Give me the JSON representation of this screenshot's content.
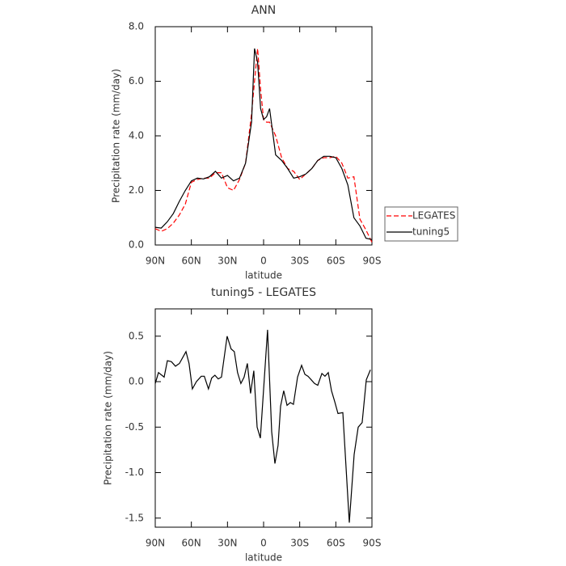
{
  "chart_data": [
    {
      "type": "line",
      "title": "ANN",
      "xlabel": "latitude",
      "ylabel": "Precipitation rate (mm/day)",
      "x": [
        90,
        85,
        80,
        75,
        70,
        65,
        60,
        55,
        50,
        45,
        40,
        35,
        30,
        25,
        20,
        15,
        10,
        7.5,
        5,
        2.5,
        0,
        -2.5,
        -5,
        -10,
        -15,
        -20,
        -25,
        -30,
        -35,
        -40,
        -45,
        -50,
        -55,
        -60,
        -65,
        -70,
        -75,
        -80,
        -85,
        -90
      ],
      "series": [
        {
          "name": "LEGATES",
          "color": "#ff0000",
          "style": "dashed",
          "values": [
            0.6,
            0.5,
            0.6,
            0.8,
            1.1,
            1.5,
            2.3,
            2.4,
            2.45,
            2.45,
            2.65,
            2.65,
            2.1,
            2.0,
            2.4,
            3.0,
            4.8,
            6.0,
            7.2,
            5.7,
            4.6,
            4.5,
            4.5,
            4.0,
            3.2,
            2.8,
            2.7,
            2.4,
            2.6,
            2.8,
            3.1,
            3.2,
            3.2,
            3.25,
            3.0,
            2.45,
            2.5,
            0.95,
            0.55,
            0.1
          ]
        },
        {
          "name": "tuning5",
          "color": "#000000",
          "style": "solid",
          "values": [
            0.65,
            0.62,
            0.85,
            1.15,
            1.6,
            2.0,
            2.35,
            2.45,
            2.42,
            2.5,
            2.7,
            2.45,
            2.55,
            2.35,
            2.45,
            3.0,
            4.5,
            7.2,
            6.7,
            5.0,
            4.6,
            4.7,
            5.0,
            3.3,
            3.1,
            2.8,
            2.45,
            2.5,
            2.6,
            2.8,
            3.1,
            3.25,
            3.25,
            3.2,
            2.8,
            2.2,
            1.0,
            0.7,
            0.25,
            0.2
          ]
        }
      ],
      "xlim": [
        90,
        -90
      ],
      "xticks": [
        {
          "value": 90,
          "label": "90N"
        },
        {
          "value": 60,
          "label": "60N"
        },
        {
          "value": 30,
          "label": "30N"
        },
        0,
        {
          "value": -30,
          "label": "30S"
        },
        {
          "value": -60,
          "label": "60S"
        },
        {
          "value": -90,
          "label": "90S"
        }
      ],
      "ylim": [
        0,
        8
      ],
      "yticks": [
        {
          "value": 0,
          "label": "0.0"
        },
        {
          "value": 2,
          "label": "2.0"
        },
        {
          "value": 4,
          "label": "4.0"
        },
        {
          "value": 6,
          "label": "6.0"
        },
        {
          "value": 8,
          "label": "8.0"
        }
      ],
      "legend": "right"
    },
    {
      "type": "line",
      "title": "tuning5 - LEGATES",
      "xlabel": "latitude",
      "ylabel": "Precipitation rate (mm/day)",
      "x": [
        90,
        87.3,
        82.6,
        79.9,
        76.6,
        73.2,
        69.9,
        64.5,
        61.9,
        59.2,
        55.8,
        51.8,
        49.2,
        45.8,
        43.1,
        40.4,
        37.7,
        35.0,
        30.3,
        27.0,
        24.3,
        21.6,
        18.9,
        16.2,
        13.5,
        10.8,
        8.1,
        5.4,
        2.7,
        -3.3,
        -6.7,
        -9.4,
        -12.0,
        -14.1,
        -16.7,
        -19.5,
        -22.2,
        -24.8,
        -28.2,
        -31.6,
        -34.3,
        -36.9,
        -39.6,
        -42.3,
        -45.0,
        -48.4,
        -51.0,
        -53.7,
        -56.4,
        -59.1,
        -61.8,
        -65.8,
        -71.2,
        -75.2,
        -78.6,
        -81.9,
        -85.3,
        -88.7
      ],
      "values": [
        -0.02,
        0.1,
        0.05,
        0.23,
        0.22,
        0.17,
        0.2,
        0.33,
        0.2,
        -0.08,
        0.0,
        0.06,
        0.06,
        -0.08,
        0.04,
        0.07,
        0.03,
        0.05,
        0.5,
        0.36,
        0.33,
        0.1,
        -0.02,
        0.05,
        0.2,
        -0.13,
        0.12,
        -0.5,
        -0.62,
        0.57,
        -0.55,
        -0.9,
        -0.7,
        -0.27,
        -0.1,
        -0.26,
        -0.23,
        -0.25,
        0.05,
        0.18,
        0.08,
        0.06,
        0.02,
        -0.02,
        -0.04,
        0.09,
        0.06,
        0.1,
        -0.1,
        -0.22,
        -0.35,
        -0.34,
        -1.55,
        -0.8,
        -0.5,
        -0.45,
        0.02,
        0.13
      ],
      "color": "#000000",
      "xlim": [
        90,
        -90
      ],
      "xticks": [
        {
          "value": 90,
          "label": "90N"
        },
        {
          "value": 60,
          "label": "60N"
        },
        {
          "value": 30,
          "label": "30N"
        },
        0,
        {
          "value": -30,
          "label": "30S"
        },
        {
          "value": -60,
          "label": "60S"
        },
        {
          "value": -90,
          "label": "90S"
        }
      ],
      "ylim": [
        -1.6,
        0.8
      ],
      "yticks": [
        -1.5,
        {
          "value": -1.0,
          "label": "-1.0"
        },
        -0.5,
        {
          "value": 0,
          "label": "0.0"
        },
        0.5
      ]
    }
  ]
}
